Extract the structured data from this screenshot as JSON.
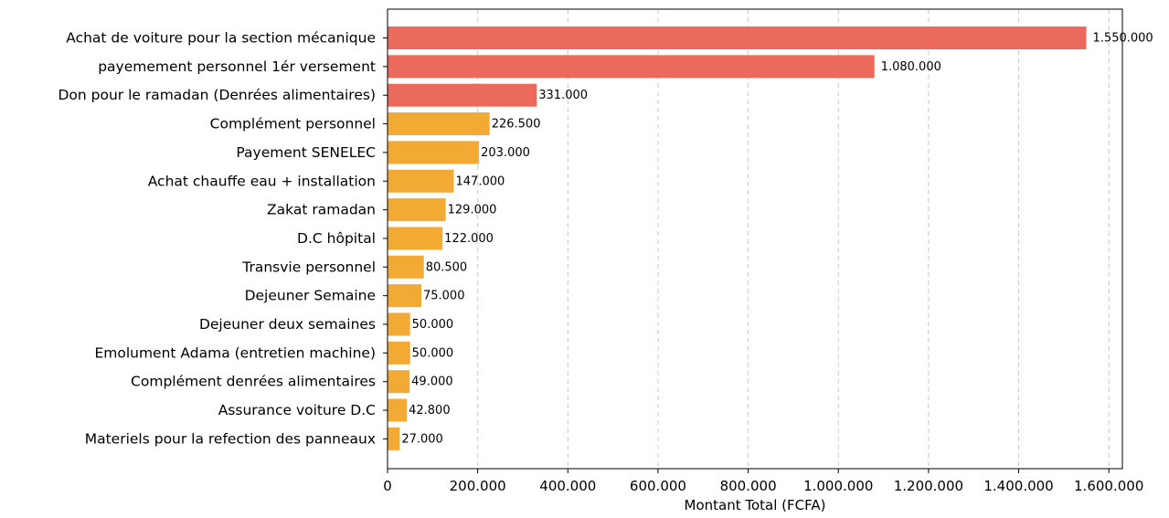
{
  "chart_data": {
    "type": "bar",
    "orientation": "horizontal",
    "title": "",
    "xlabel": "Montant Total (FCFA)",
    "ylabel": "",
    "xlim": [
      0,
      1630000
    ],
    "grid": "vertical-dashed",
    "categories": [
      "Achat de voiture pour la section mécanique",
      "payemement personnel 1ér versement",
      "Don pour le ramadan (Denrées alimentaires)",
      "Complément personnel",
      "Payement SENELEC",
      "Achat chauffe eau + installation",
      "Zakat ramadan",
      "D.C hôpital",
      "Transvie personnel",
      "Dejeuner Semaine",
      "Dejeuner deux semaines",
      "Emolument Adama (entretien machine)",
      "Complément denrées alimentaires",
      "Assurance voiture D.C",
      "Materiels pour la refection des panneaux"
    ],
    "values": [
      1550000,
      1080000,
      331000,
      226500,
      203000,
      147000,
      129000,
      122000,
      80500,
      75000,
      50000,
      50000,
      49000,
      42800,
      27000
    ],
    "value_labels": [
      "1.550.000",
      "1.080.000",
      "331.000",
      "226.500",
      "203.000",
      "147.000",
      "129.000",
      "122.000",
      "80.500",
      "75.000",
      "50.000",
      "50.000",
      "49.000",
      "42.800",
      "27.000"
    ],
    "bar_colors": [
      "#ec6a5c",
      "#ec6a5c",
      "#ec6a5c",
      "#f3aa35",
      "#f3aa35",
      "#f3aa35",
      "#f3aa35",
      "#f3aa35",
      "#f3aa35",
      "#f3aa35",
      "#f3aa35",
      "#f3aa35",
      "#f3aa35",
      "#f3aa35",
      "#f3aa35"
    ],
    "x_ticks": [
      0,
      200000,
      400000,
      600000,
      800000,
      1000000,
      1200000,
      1400000,
      1600000
    ],
    "x_tick_labels": [
      "0",
      "200.000",
      "400.000",
      "600.000",
      "800.000",
      "1.000.000",
      "1.200.000",
      "1.400.000",
      "1.600.000"
    ]
  }
}
